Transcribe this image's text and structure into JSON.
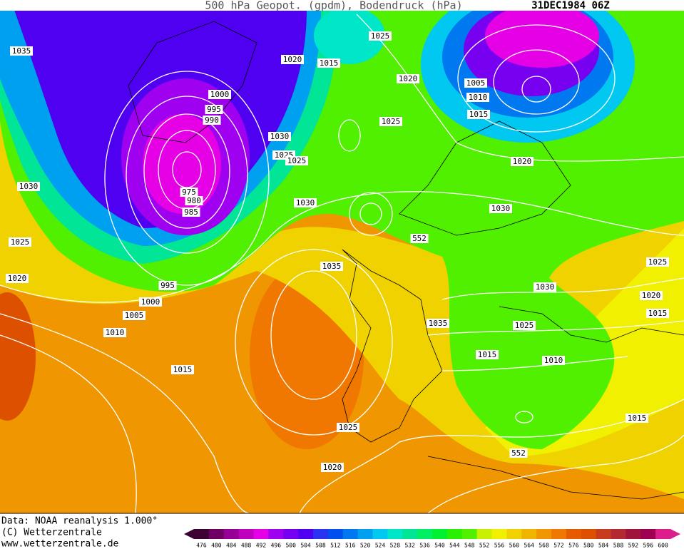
{
  "header": {
    "title": "500 hPa Geopot. (gpdm), Bodendruck (hPa)",
    "date": "31DEC1984 06Z"
  },
  "map": {
    "isobar_labels": [
      1035,
      1020,
      1015,
      1025,
      1020,
      1000,
      995,
      990,
      1005,
      1010,
      1015,
      1025,
      1030,
      1025,
      1025,
      1020,
      1030,
      975,
      980,
      985,
      1030,
      1030,
      552,
      1025,
      1035,
      1025,
      1020,
      995,
      1000,
      1030,
      1020,
      1015,
      1005,
      1035,
      1025,
      1010,
      1015,
      1010,
      1015,
      1015,
      1025,
      552,
      1020
    ]
  },
  "footer": {
    "lines": [
      "Data: NOAA reanalysis 1.000°",
      "(C) Wetterzentrale",
      "www.wetterzentrale.de"
    ]
  },
  "colorbar": {
    "values": [
      476,
      480,
      484,
      488,
      492,
      496,
      500,
      504,
      508,
      512,
      516,
      520,
      524,
      528,
      532,
      536,
      540,
      544,
      548,
      552,
      556,
      560,
      564,
      568,
      572,
      576,
      580,
      584,
      588,
      592,
      596,
      600
    ],
    "colors": [
      "#3c0032",
      "#6e0064",
      "#960096",
      "#be00be",
      "#e600e6",
      "#a000f0",
      "#7800f0",
      "#5000f0",
      "#2832f0",
      "#0050f0",
      "#0078f0",
      "#00a0f0",
      "#00c8f0",
      "#00e6c8",
      "#00e696",
      "#00f064",
      "#00f032",
      "#28f000",
      "#50f000",
      "#c8f000",
      "#f0f000",
      "#f0d200",
      "#f0b400",
      "#f09600",
      "#f07800",
      "#e65a00",
      "#dc5000",
      "#c83c1e",
      "#b42832",
      "#a0143c",
      "#a00050",
      "#dc1e8c"
    ]
  }
}
